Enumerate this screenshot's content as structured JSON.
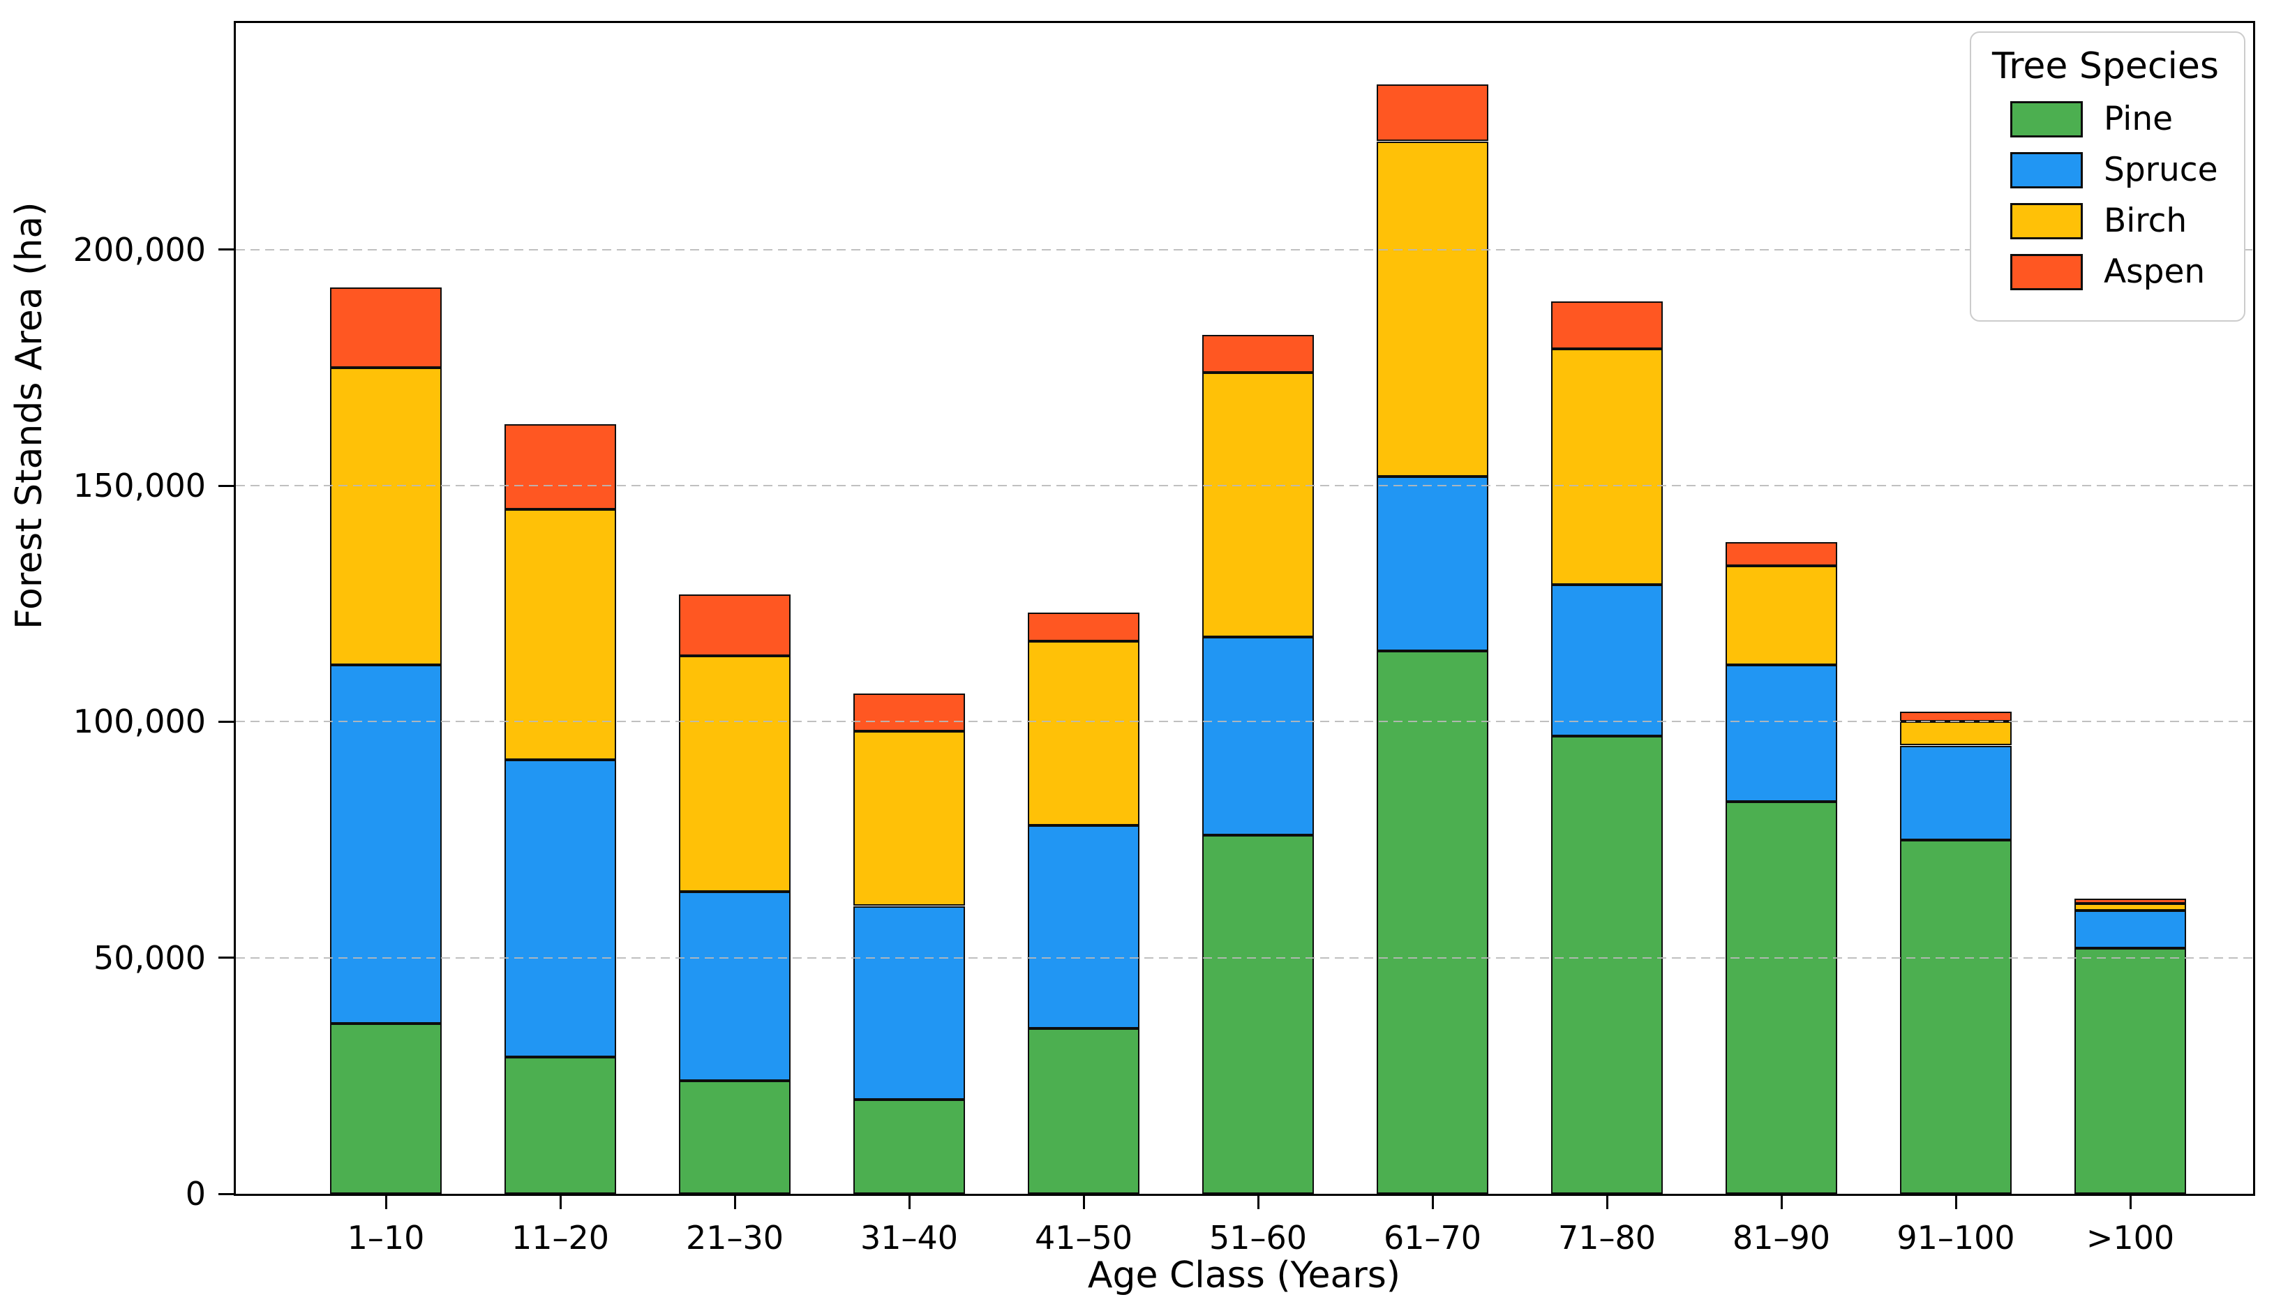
{
  "chart_data": {
    "type": "bar",
    "stacked": true,
    "xlabel": "Age Class (Years)",
    "ylabel": "Forest Stands Area (ha)",
    "categories": [
      "1–10",
      "11–20",
      "21–30",
      "31–40",
      "41–50",
      "51–60",
      "61–70",
      "71–80",
      "81–90",
      "91–100",
      ">100"
    ],
    "series": [
      {
        "name": "Pine",
        "color": "#4caf50",
        "values": [
          36000,
          29000,
          24000,
          20000,
          35000,
          76000,
          115000,
          97000,
          83000,
          75000,
          52000
        ]
      },
      {
        "name": "Spruce",
        "color": "#2196f3",
        "values": [
          76000,
          63000,
          40000,
          41000,
          43000,
          42000,
          37000,
          32000,
          29000,
          20000,
          8000
        ]
      },
      {
        "name": "Birch",
        "color": "#ffc107",
        "values": [
          63000,
          53000,
          50000,
          37000,
          39000,
          56000,
          71000,
          50000,
          21000,
          5000,
          1500
        ]
      },
      {
        "name": "Aspen",
        "color": "#ff5722",
        "values": [
          17000,
          18000,
          13000,
          8000,
          6000,
          8000,
          12000,
          10000,
          5000,
          2000,
          1000
        ]
      }
    ],
    "stack_totals": [
      192000,
      163000,
      127000,
      106000,
      123000,
      182000,
      235000,
      189000,
      138000,
      102000,
      62500
    ],
    "ylim": [
      0,
      248000
    ],
    "yticks": [
      0,
      50000,
      100000,
      150000,
      200000
    ],
    "ytick_labels": [
      "0",
      "50,000",
      "100,000",
      "150,000",
      "200,000"
    ],
    "legend_title": "Tree Species",
    "legend_position": "upper right",
    "grid": "horizontal dashed",
    "edge_color": "#0d0d0d"
  }
}
